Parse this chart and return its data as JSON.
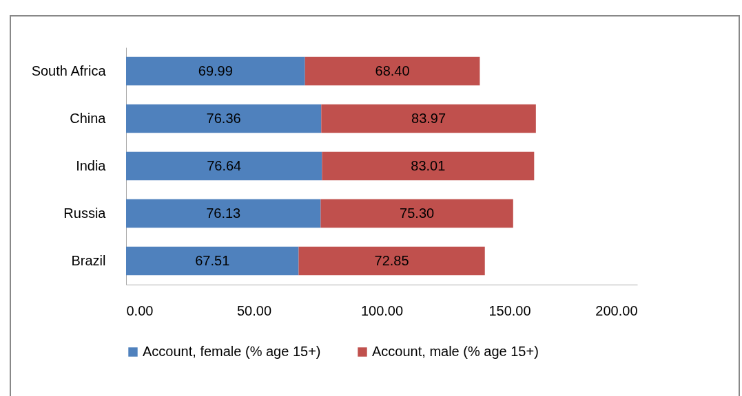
{
  "chart_data": {
    "type": "bar",
    "orientation": "horizontal",
    "stacked": true,
    "categories": [
      "South Africa",
      "China",
      "India",
      "Russia",
      "Brazil"
    ],
    "series": [
      {
        "name": "Account, female (% age 15+)",
        "color": "#4f81bd",
        "values": [
          69.99,
          76.36,
          76.64,
          76.13,
          67.51
        ],
        "value_labels": [
          "69.99",
          "76.36",
          "76.64",
          "76.13",
          "67.51"
        ]
      },
      {
        "name": "Account, male (% age 15+)",
        "color": "#c0504d",
        "values": [
          68.4,
          83.97,
          83.01,
          75.3,
          72.85
        ],
        "value_labels": [
          "68.40",
          "83.97",
          "83.01",
          "75.30",
          "72.85"
        ]
      }
    ],
    "xlim": [
      0,
      200
    ],
    "xticks": [
      {
        "value": 0,
        "label": "0.00"
      },
      {
        "value": 50,
        "label": "50.00"
      },
      {
        "value": 100,
        "label": "100.00"
      },
      {
        "value": 150,
        "label": "150.00"
      },
      {
        "value": 200,
        "label": "200.00"
      }
    ],
    "grid": false,
    "legend": "bottom"
  }
}
